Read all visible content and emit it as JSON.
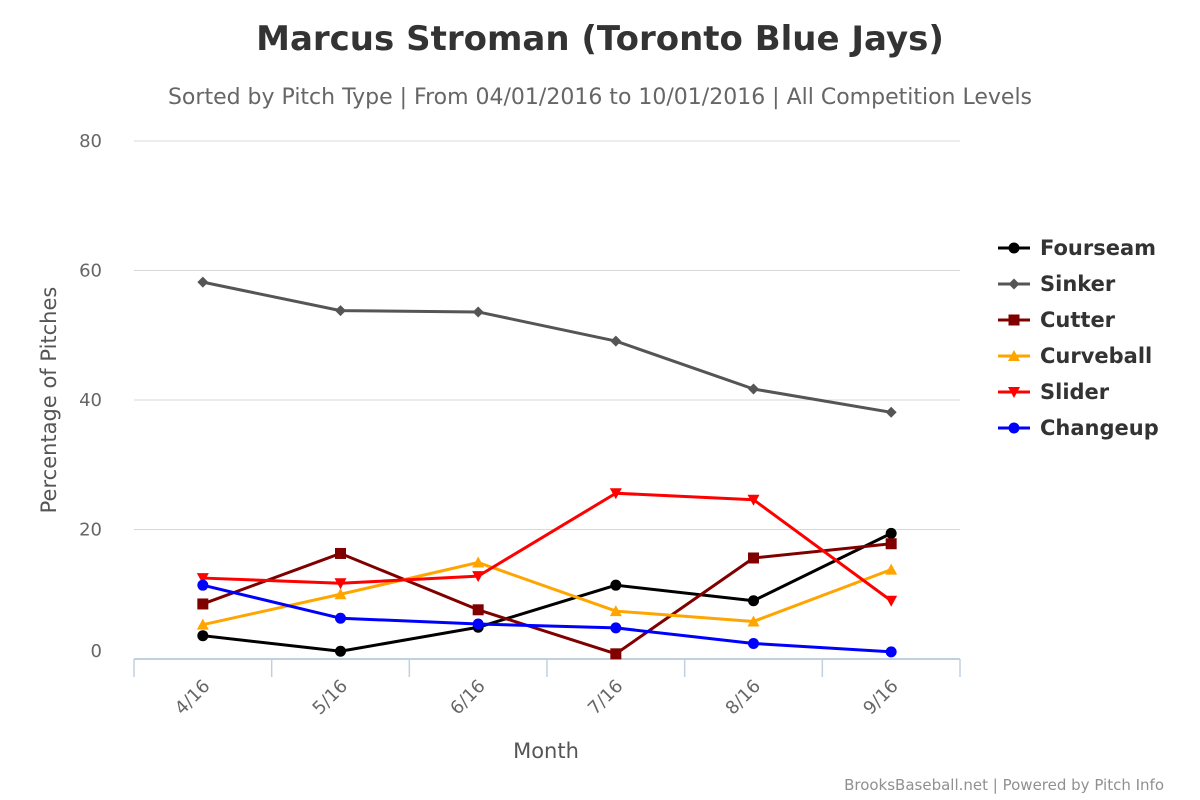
{
  "chart_data": {
    "type": "line",
    "title": "Marcus Stroman (Toronto Blue Jays)",
    "subtitle": "Sorted by Pitch Type | From 04/01/2016 to 10/01/2016 | All Competition Levels",
    "xlabel": "Month",
    "ylabel": "Percentage of Pitches",
    "categories": [
      "4/16",
      "5/16",
      "6/16",
      "7/16",
      "8/16",
      "9/16"
    ],
    "ylim": [
      0,
      80
    ],
    "yticks": [
      0,
      20,
      40,
      60,
      80
    ],
    "grid": true,
    "legend_position": "right",
    "series": [
      {
        "name": "Fourseam",
        "color": "#000000",
        "marker": "circle",
        "values": [
          3.6,
          1.2,
          4.9,
          11.4,
          9.0,
          19.4
        ]
      },
      {
        "name": "Sinker",
        "color": "#555555",
        "marker": "diamond",
        "values": [
          58.2,
          53.8,
          53.6,
          49.1,
          41.7,
          38.1
        ]
      },
      {
        "name": "Cutter",
        "color": "#800000",
        "marker": "square",
        "values": [
          8.5,
          16.3,
          7.6,
          0.8,
          15.6,
          17.8
        ]
      },
      {
        "name": "Curveball",
        "color": "#FFA500",
        "marker": "triangle",
        "values": [
          5.3,
          10.0,
          14.9,
          7.4,
          5.8,
          13.8
        ]
      },
      {
        "name": "Slider",
        "color": "#FF0000",
        "marker": "triangle-down",
        "values": [
          12.5,
          11.7,
          12.8,
          25.6,
          24.6,
          9.0
        ]
      },
      {
        "name": "Changeup",
        "color": "#0000FF",
        "marker": "circle",
        "values": [
          11.4,
          6.3,
          5.4,
          4.8,
          2.4,
          1.1
        ]
      }
    ]
  },
  "credits": "BrooksBaseball.net | Powered by Pitch Info"
}
